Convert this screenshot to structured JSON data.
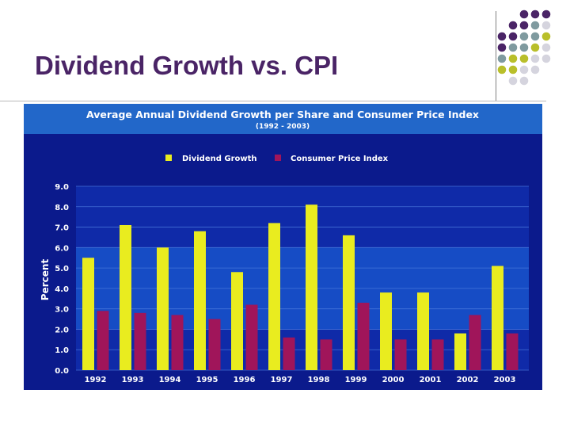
{
  "slide": {
    "title": "Dividend Growth vs. CPI"
  },
  "decoration": {
    "dot_colors": [
      "#4a2466",
      "#7f9a9f",
      "#b9bf2a",
      "#d5d4de"
    ]
  },
  "chart_data": {
    "type": "bar",
    "title": "Average Annual Dividend Growth per Share and Consumer Price Index",
    "subtitle": "(1992 - 2003)",
    "xlabel": "",
    "ylabel": "Percent",
    "ylim": [
      0,
      9
    ],
    "yticks": [
      "0.0",
      "1.0",
      "2.0",
      "3.0",
      "4.0",
      "5.0",
      "6.0",
      "7.0",
      "8.0",
      "9.0"
    ],
    "grid": true,
    "legend_position": "top",
    "categories": [
      "1992",
      "1993",
      "1994",
      "1995",
      "1996",
      "1997",
      "1998",
      "1999",
      "2000",
      "2001",
      "2002",
      "2003"
    ],
    "series": [
      {
        "name": "Dividend Growth",
        "color": "#e9ec1f",
        "values": [
          5.5,
          7.1,
          6.0,
          6.8,
          4.8,
          7.2,
          8.1,
          6.6,
          3.8,
          3.8,
          1.8,
          5.1
        ]
      },
      {
        "name": "Consumer Price Index",
        "color": "#a0155a",
        "values": [
          2.9,
          2.8,
          2.7,
          2.5,
          3.2,
          1.6,
          1.5,
          3.3,
          1.5,
          1.5,
          2.7,
          1.8
        ]
      }
    ],
    "colors": {
      "background": "#0b1a8c",
      "header": "#2267c9",
      "band": "#1a58cf",
      "plot": "#0f2aa8",
      "text": "#ffffff"
    }
  }
}
